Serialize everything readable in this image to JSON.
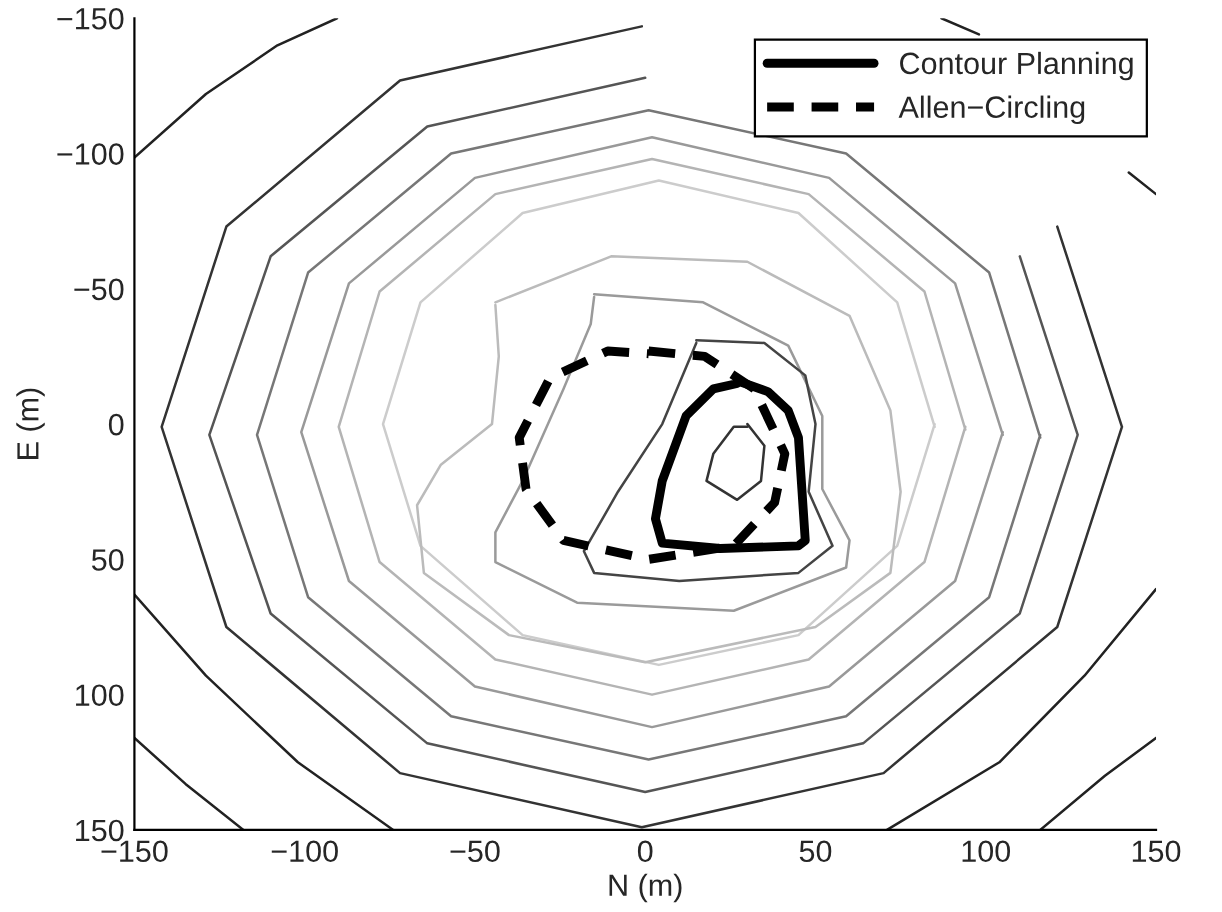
{
  "chart_data": {
    "type": "line",
    "xlabel": "N (m)",
    "ylabel": "E (m)",
    "xlim": [
      -150,
      150
    ],
    "ylim": [
      150,
      -150
    ],
    "xticks": [
      {
        "value": -150,
        "label": "−150"
      },
      {
        "value": -100,
        "label": "−100"
      },
      {
        "value": -50,
        "label": "−50"
      },
      0,
      50,
      100,
      150
    ],
    "yticks": [
      {
        "value": -150,
        "label": "−150"
      },
      {
        "value": -100,
        "label": "−100"
      },
      {
        "value": -50,
        "label": "−50"
      },
      0,
      50,
      100,
      150
    ],
    "grid": false,
    "legend": "top right",
    "series": [
      {
        "color": "#222222",
        "x": [
          -150,
          -129,
          -108,
          -90.5
        ],
        "values": [
          -98.5,
          -122,
          -140,
          -150
        ]
      },
      {
        "color": "#222222",
        "x": [
          87,
          98,
          108,
          129,
          142,
          150
        ],
        "values": [
          -150,
          -144,
          null,
          null,
          -93,
          -85
        ]
      },
      {
        "color": "#222222",
        "x": [
          -150,
          -129,
          -102,
          -74
        ],
        "values": [
          63,
          93,
          125,
          150
        ]
      },
      {
        "color": "#222222",
        "x": [
          -150,
          -135,
          -118
        ],
        "values": [
          116,
          133,
          150
        ]
      },
      {
        "color": "#222222",
        "x": [
          71,
          104,
          129,
          150
        ],
        "values": [
          150,
          125,
          93,
          61
        ]
      },
      {
        "color": "#222222",
        "x": [
          116,
          135,
          150
        ],
        "values": [
          150,
          130,
          116
        ]
      },
      {
        "color": "#333333",
        "x": [
          140,
          121,
          70,
          -1,
          -72,
          -123,
          -142,
          -123,
          -72,
          -1,
          70,
          121,
          140
        ],
        "values": [
          1,
          75,
          129,
          149,
          129,
          75,
          1,
          -73,
          -127,
          -147,
          null,
          -73,
          1
        ]
      },
      {
        "color": "#555555",
        "x": [
          127,
          110,
          64,
          0,
          -64,
          -110,
          -128,
          -110,
          -64,
          0,
          64,
          110,
          127
        ],
        "values": [
          4,
          70,
          118,
          136,
          118,
          70,
          4,
          -62,
          -110,
          -128,
          null,
          -62,
          4
        ]
      },
      {
        "color": "#777777",
        "x": [
          116,
          101,
          59,
          1,
          -57,
          -99,
          -114,
          -99,
          -57,
          1,
          59,
          101,
          116
        ],
        "values": [
          4,
          64,
          108,
          124,
          108,
          64,
          4,
          -56,
          -100,
          -116,
          -100,
          -56,
          5
        ]
      },
      {
        "color": "#999999",
        "x": [
          105,
          91,
          54,
          2,
          -50,
          -87,
          -101,
          -87,
          -50,
          2,
          54,
          91,
          105
        ],
        "values": [
          3,
          58,
          97,
          112,
          97,
          58,
          3,
          -52,
          -91,
          -106,
          -91,
          -52,
          4
        ]
      },
      {
        "color": "#b4b4b4",
        "x": [
          94,
          82,
          48,
          2,
          -44,
          -78,
          -90,
          -78,
          -44,
          2,
          48,
          82,
          94
        ],
        "values": [
          1,
          51,
          87,
          100,
          87,
          51,
          1,
          -49,
          -85,
          -98,
          -85,
          -49,
          2
        ]
      },
      {
        "color": "#cccccc",
        "x": [
          85,
          74,
          45,
          4,
          -36,
          -66,
          -77,
          -66,
          -36,
          4,
          45,
          74,
          85
        ],
        "values": [
          0,
          45,
          78,
          89,
          78,
          45,
          0,
          -45,
          -78,
          -90,
          -78,
          -45,
          1
        ]
      },
      {
        "color": "#bbbbbb",
        "x": [
          -44,
          -10,
          30,
          60,
          72,
          75,
          72,
          50,
          0,
          -40,
          -65,
          -67,
          -60,
          -45,
          -43,
          -44
        ],
        "values": [
          -45,
          -62,
          -60,
          -40,
          -5,
          25,
          55,
          75,
          88,
          78,
          55,
          30,
          15,
          0,
          -25,
          -44
        ]
      },
      {
        "color": "#9a9a9a",
        "x": [
          -15,
          17,
          42,
          52,
          52,
          60,
          59,
          26,
          -20,
          -44,
          -44,
          -36,
          -24,
          -16,
          -15
        ],
        "values": [
          -48,
          -45,
          -29,
          -3,
          24,
          43,
          53,
          69,
          66,
          51,
          40,
          21,
          -13,
          -37,
          -47
        ]
      },
      {
        "color": "#444444",
        "x": [
          15,
          35,
          47,
          50,
          48,
          55,
          45,
          10,
          -15,
          -18,
          -8,
          5,
          15
        ],
        "values": [
          -31,
          -30,
          -18,
          0,
          25,
          45,
          55,
          58,
          55,
          47,
          25,
          0,
          -30
        ]
      },
      {
        "color": "#333333",
        "x": [
          30,
          35,
          34,
          27,
          18,
          20,
          26,
          30
        ],
        "values": [
          0,
          8,
          21,
          28,
          21,
          11,
          1,
          1
        ]
      },
      {
        "name": "Contour Planning",
        "color": "#000000",
        "line_style": "solid",
        "x": [
          27,
          36,
          42,
          45,
          46,
          47,
          45,
          22,
          5,
          3,
          5,
          12,
          20,
          27
        ],
        "values": [
          -16,
          -12,
          -5,
          5,
          24,
          43,
          45,
          46,
          44,
          35,
          21,
          -3,
          -13,
          -15
        ]
      },
      {
        "name": "Allen−Circling",
        "color": "#000000",
        "line_style": "dashed",
        "x": [
          1,
          17.5,
          32,
          41,
          38,
          26,
          1,
          -24,
          -35,
          -37,
          -28,
          -11,
          1
        ],
        "values": [
          -27,
          -25,
          -13,
          11,
          29,
          45,
          50,
          43,
          24,
          5,
          -17,
          -27,
          -26
        ]
      }
    ]
  }
}
